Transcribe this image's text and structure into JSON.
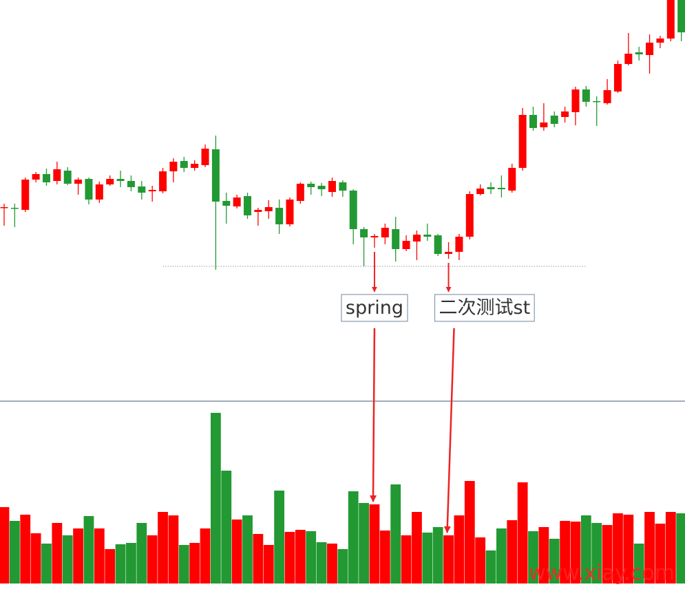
{
  "chart_data": {
    "type": "candlestick",
    "up_color": "#ff0000",
    "down_color": "#229933",
    "ylim": [
      17,
      600
    ],
    "volume_ylim": [
      0,
      265
    ],
    "open": [
      298,
      298,
      295,
      339,
      347,
      337,
      352,
      333,
      340,
      310,
      332,
      340,
      337,
      329,
      322,
      322,
      351,
      366,
      356,
      360,
      383,
      308,
      300,
      315,
      292,
      293,
      298,
      274,
      308,
      333,
      330,
      321,
      335,
      323,
      267,
      255,
      255,
      267,
      238,
      249,
      259,
      258,
      231,
      234,
      256,
      318,
      328,
      327,
      323,
      356,
      433,
      415,
      432,
      430,
      437,
      470,
      453,
      450,
      467,
      507,
      524,
      520,
      538,
      544,
      600
    ],
    "close": [
      299,
      297,
      339,
      347,
      335,
      354,
      333,
      339,
      310,
      332,
      340,
      337,
      328,
      320,
      324,
      351,
      365,
      356,
      362,
      384,
      307,
      301,
      313,
      287,
      295,
      299,
      274,
      310,
      333,
      328,
      325,
      337,
      323,
      267,
      255,
      257,
      269,
      238,
      250,
      259,
      256,
      231,
      234,
      256,
      318,
      326,
      325,
      325,
      356,
      433,
      414,
      422,
      420,
      438,
      470,
      452,
      453,
      469,
      507,
      522,
      521,
      538,
      544,
      600,
      553
    ],
    "high": [
      304,
      304,
      342,
      350,
      355,
      365,
      357,
      342,
      342,
      336,
      345,
      352,
      345,
      337,
      330,
      356,
      370,
      372,
      367,
      390,
      403,
      320,
      317,
      320,
      298,
      309,
      310,
      313,
      335,
      336,
      334,
      342,
      338,
      325,
      270,
      260,
      275,
      285,
      258,
      265,
      275,
      260,
      248,
      260,
      322,
      332,
      335,
      345,
      362,
      443,
      445,
      450,
      438,
      445,
      474,
      475,
      460,
      485,
      512,
      552,
      532,
      550,
      548,
      600,
      600
    ],
    "low": [
      272,
      270,
      292,
      335,
      330,
      332,
      331,
      317,
      303,
      305,
      330,
      328,
      322,
      310,
      307,
      319,
      335,
      350,
      352,
      357,
      208,
      275,
      297,
      282,
      272,
      282,
      260,
      271,
      304,
      317,
      315,
      314,
      314,
      245,
      213,
      240,
      245,
      220,
      235,
      222,
      250,
      228,
      224,
      222,
      252,
      316,
      318,
      313,
      320,
      352,
      410,
      410,
      415,
      422,
      418,
      445,
      417,
      448,
      465,
      505,
      512,
      493,
      530,
      540,
      540
    ],
    "volume": [
      111,
      91,
      100,
      73,
      58,
      88,
      70,
      80,
      98,
      80,
      50,
      57,
      59,
      88,
      70,
      104,
      99,
      56,
      59,
      80,
      248,
      164,
      93,
      99,
      72,
      56,
      135,
      75,
      78,
      76,
      60,
      58,
      50,
      134,
      117,
      115,
      77,
      144,
      70,
      104,
      74,
      82,
      70,
      99,
      149,
      67,
      48,
      80,
      92,
      147,
      76,
      82,
      65,
      91,
      90,
      99,
      88,
      85,
      102,
      100,
      58,
      104,
      87,
      104,
      102
    ],
    "hline": {
      "value": 213,
      "start": 15,
      "end": 55
    },
    "annotations": [
      {
        "text": "spring",
        "index": 35
      },
      {
        "text": "二次测试st",
        "index": 42
      }
    ],
    "watermark": "www.xiay.com"
  }
}
